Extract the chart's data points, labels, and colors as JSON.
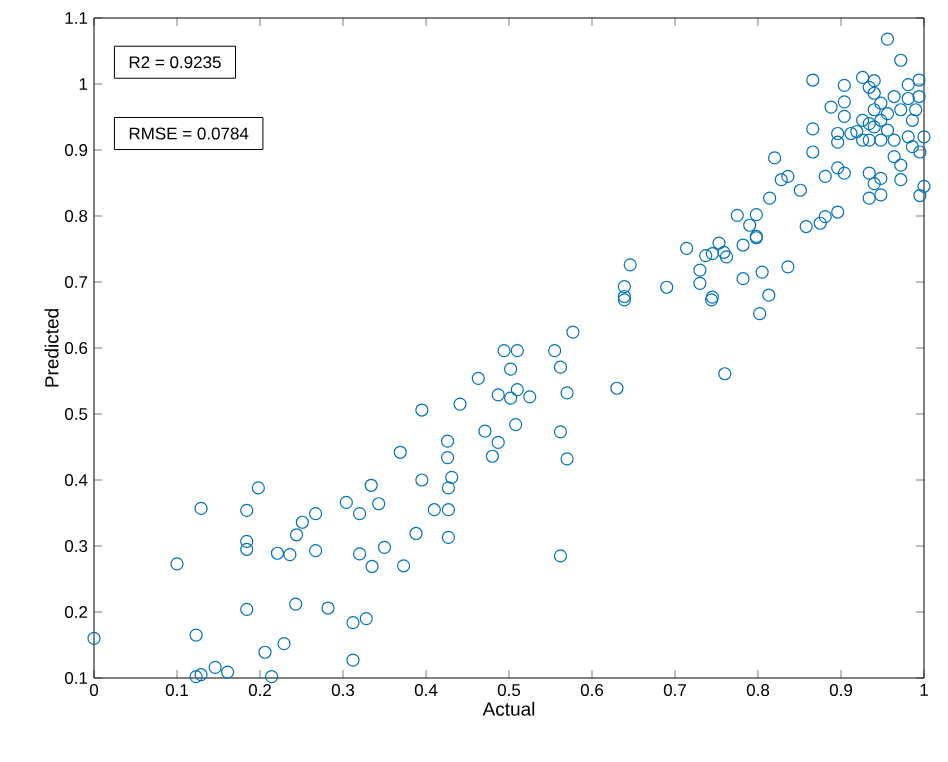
{
  "chart_data": {
    "type": "scatter",
    "xlabel": "Actual",
    "ylabel": "Predicted",
    "annotations": [
      "R2 = 0.9235",
      "RMSE = 0.0784"
    ],
    "xlim": [
      0,
      1
    ],
    "ylim": [
      0.1,
      1.1
    ],
    "xticks": [
      0,
      0.1,
      0.2,
      0.3,
      0.4,
      0.5,
      0.6,
      0.7,
      0.8,
      0.9,
      1
    ],
    "yticks": [
      0.1,
      0.2,
      0.3,
      0.4,
      0.5,
      0.6,
      0.7,
      0.8,
      0.9,
      1,
      1.1
    ],
    "marker": "circle",
    "color": "#0072bd",
    "x": [
      0.0,
      0.1,
      0.129,
      0.123,
      0.123,
      0.129,
      0.146,
      0.161,
      0.184,
      0.184,
      0.184,
      0.198,
      0.184,
      0.206,
      0.214,
      0.229,
      0.221,
      0.236,
      0.243,
      0.244,
      0.251,
      0.267,
      0.267,
      0.282,
      0.304,
      0.32,
      0.334,
      0.343,
      0.32,
      0.335,
      0.35,
      0.312,
      0.328,
      0.312,
      0.373,
      0.388,
      0.395,
      0.41,
      0.427,
      0.427,
      0.427,
      0.431,
      0.369,
      0.426,
      0.426,
      0.395,
      0.441,
      0.463,
      0.471,
      0.487,
      0.48,
      0.487,
      0.502,
      0.51,
      0.525,
      0.502,
      0.494,
      0.51,
      0.508,
      0.555,
      0.562,
      0.57,
      0.562,
      0.57,
      0.562,
      0.577,
      0.63,
      0.76,
      0.639,
      0.744,
      0.802,
      0.639,
      0.639,
      0.646,
      0.69,
      0.714,
      0.73,
      0.73,
      0.745,
      0.737,
      0.745,
      0.753,
      0.759,
      0.762,
      0.782,
      0.782,
      0.79,
      0.775,
      0.798,
      0.798,
      0.798,
      0.805,
      0.813,
      0.836,
      0.814,
      0.82,
      0.828,
      0.836,
      0.851,
      0.858,
      0.875,
      0.881,
      0.896,
      0.866,
      0.866,
      0.866,
      0.881,
      0.896,
      0.904,
      0.896,
      0.888,
      0.904,
      0.904,
      0.904,
      0.912,
      0.926,
      0.934,
      0.94,
      0.934,
      0.934,
      0.94,
      0.948,
      0.948,
      0.956,
      0.972,
      0.981,
      0.994,
      0.994,
      0.99,
      1.0,
      1.0,
      0.995,
      0.995,
      0.986,
      0.972,
      0.972,
      0.964,
      0.964,
      0.956,
      0.956,
      0.948,
      0.948,
      0.948,
      0.94,
      0.94,
      0.94,
      0.934,
      0.934,
      0.926,
      0.926,
      0.919,
      0.964,
      0.981,
      0.986,
      0.981,
      0.896,
      0.972
    ],
    "values": [
      0.16,
      0.273,
      0.357,
      0.165,
      0.102,
      0.105,
      0.116,
      0.109,
      0.354,
      0.307,
      0.295,
      0.388,
      0.204,
      0.139,
      0.102,
      0.152,
      0.289,
      0.287,
      0.212,
      0.317,
      0.336,
      0.349,
      0.293,
      0.206,
      0.366,
      0.349,
      0.392,
      0.364,
      0.288,
      0.269,
      0.298,
      0.184,
      0.19,
      0.127,
      0.27,
      0.319,
      0.4,
      0.355,
      0.355,
      0.313,
      0.388,
      0.404,
      0.442,
      0.434,
      0.459,
      0.506,
      0.515,
      0.554,
      0.474,
      0.457,
      0.436,
      0.529,
      0.524,
      0.537,
      0.526,
      0.568,
      0.596,
      0.596,
      0.484,
      0.596,
      0.571,
      0.532,
      0.473,
      0.432,
      0.285,
      0.624,
      0.539,
      0.561,
      0.673,
      0.673,
      0.652,
      0.693,
      0.678,
      0.726,
      0.692,
      0.751,
      0.718,
      0.698,
      0.677,
      0.74,
      0.743,
      0.759,
      0.745,
      0.738,
      0.705,
      0.756,
      0.786,
      0.801,
      0.802,
      0.769,
      0.767,
      0.715,
      0.68,
      0.723,
      0.827,
      0.888,
      0.855,
      0.86,
      0.839,
      0.784,
      0.789,
      0.799,
      0.806,
      0.897,
      0.932,
      1.006,
      0.86,
      0.873,
      0.865,
      0.912,
      0.965,
      0.998,
      0.973,
      0.951,
      0.925,
      1.01,
      0.995,
      1.005,
      0.865,
      0.827,
      0.849,
      0.832,
      0.857,
      1.068,
      1.036,
      0.999,
      1.006,
      0.981,
      0.961,
      0.92,
      0.845,
      0.831,
      0.897,
      0.905,
      0.877,
      0.855,
      0.89,
      0.915,
      0.93,
      0.955,
      0.971,
      0.945,
      0.915,
      0.935,
      0.961,
      0.986,
      0.915,
      0.94,
      0.915,
      0.945,
      0.928,
      0.981,
      0.978,
      0.945,
      0.92,
      0.925,
      0.961
    ]
  }
}
